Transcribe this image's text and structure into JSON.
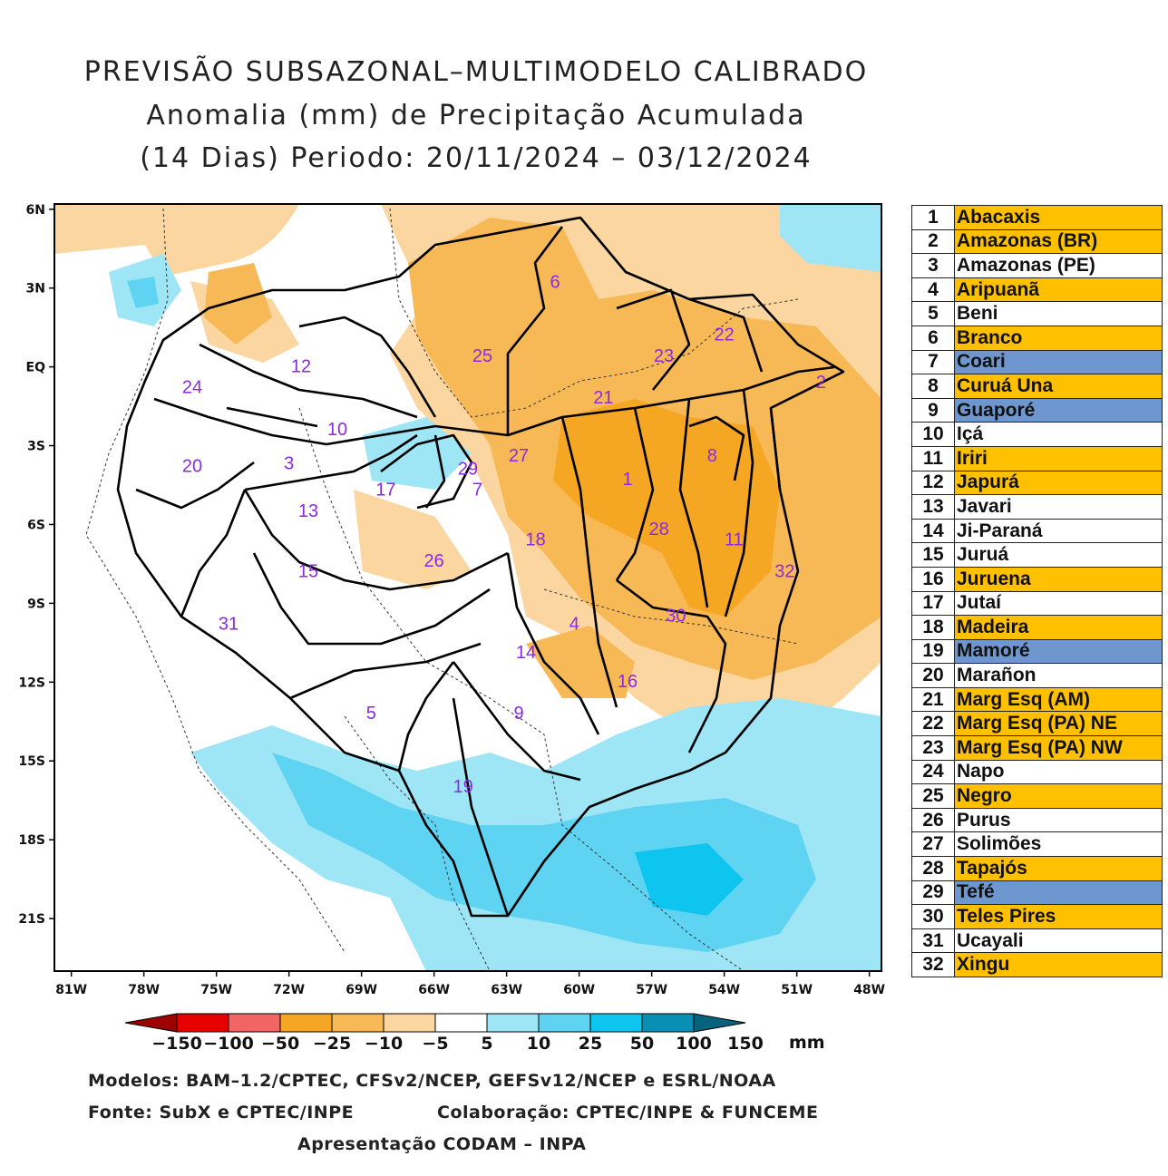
{
  "title": {
    "line1": "PREVISÃO SUBSAZONAL–MULTIMODELO CALIBRADO",
    "line2": "Anomalia (mm) de Precipitação Acumulada",
    "line3": "(14 Dias) Periodo: 20/11/2024 – 03/12/2024"
  },
  "axes": {
    "y_ticks": [
      "6N",
      "3N",
      "EQ",
      "3S",
      "6S",
      "9S",
      "12S",
      "15S",
      "18S",
      "21S"
    ],
    "x_ticks": [
      "81W",
      "78W",
      "75W",
      "72W",
      "69W",
      "66W",
      "63W",
      "60W",
      "57W",
      "54W",
      "51W",
      "48W"
    ]
  },
  "basin_labels": [
    {
      "id": "6",
      "lon": -61.0,
      "lat": 3.0
    },
    {
      "id": "22",
      "lon": -54.0,
      "lat": 1.0
    },
    {
      "id": "25",
      "lon": -64.0,
      "lat": 0.2
    },
    {
      "id": "23",
      "lon": -56.5,
      "lat": 0.2
    },
    {
      "id": "12",
      "lon": -71.5,
      "lat": -0.2
    },
    {
      "id": "2",
      "lon": -50.0,
      "lat": -0.8
    },
    {
      "id": "24",
      "lon": -76.0,
      "lat": -1.0
    },
    {
      "id": "21",
      "lon": -59.0,
      "lat": -1.4
    },
    {
      "id": "10",
      "lon": -70.0,
      "lat": -2.6
    },
    {
      "id": "3",
      "lon": -72.0,
      "lat": -3.9
    },
    {
      "id": "20",
      "lon": -76.0,
      "lat": -4.0
    },
    {
      "id": "27",
      "lon": -62.5,
      "lat": -3.6
    },
    {
      "id": "8",
      "lon": -54.5,
      "lat": -3.6
    },
    {
      "id": "29",
      "lon": -64.6,
      "lat": -4.1
    },
    {
      "id": "1",
      "lon": -58.0,
      "lat": -4.5
    },
    {
      "id": "17",
      "lon": -68.0,
      "lat": -4.9
    },
    {
      "id": "7",
      "lon": -64.2,
      "lat": -4.9
    },
    {
      "id": "13",
      "lon": -71.2,
      "lat": -5.7
    },
    {
      "id": "28",
      "lon": -56.7,
      "lat": -6.4
    },
    {
      "id": "18",
      "lon": -61.8,
      "lat": -6.8
    },
    {
      "id": "11",
      "lon": -53.6,
      "lat": -6.8
    },
    {
      "id": "26",
      "lon": -66.0,
      "lat": -7.6
    },
    {
      "id": "15",
      "lon": -71.2,
      "lat": -8.0
    },
    {
      "id": "32",
      "lon": -51.5,
      "lat": -8.0
    },
    {
      "id": "30",
      "lon": -56.0,
      "lat": -9.7
    },
    {
      "id": "4",
      "lon": -60.2,
      "lat": -10.0
    },
    {
      "id": "31",
      "lon": -74.5,
      "lat": -10.0
    },
    {
      "id": "14",
      "lon": -62.2,
      "lat": -11.1
    },
    {
      "id": "16",
      "lon": -58.0,
      "lat": -12.2
    },
    {
      "id": "5",
      "lon": -68.6,
      "lat": -13.4
    },
    {
      "id": "9",
      "lon": -62.5,
      "lat": -13.4
    },
    {
      "id": "19",
      "lon": -64.8,
      "lat": -16.2
    }
  ],
  "legend": [
    {
      "n": "1",
      "name": "Abacaxis",
      "color": "#ffc000"
    },
    {
      "n": "2",
      "name": "Amazonas (BR)",
      "color": "#ffc000"
    },
    {
      "n": "3",
      "name": "Amazonas (PE)",
      "color": "#ffffff"
    },
    {
      "n": "4",
      "name": "Aripuanã",
      "color": "#ffc000"
    },
    {
      "n": "5",
      "name": "Beni",
      "color": "#ffffff"
    },
    {
      "n": "6",
      "name": "Branco",
      "color": "#ffc000"
    },
    {
      "n": "7",
      "name": "Coari",
      "color": "#6f97cf"
    },
    {
      "n": "8",
      "name": "Curuá Una",
      "color": "#ffc000"
    },
    {
      "n": "9",
      "name": "Guaporé",
      "color": "#6f97cf"
    },
    {
      "n": "10",
      "name": "Içá",
      "color": "#ffffff"
    },
    {
      "n": "11",
      "name": "Iriri",
      "color": "#ffc000"
    },
    {
      "n": "12",
      "name": "Japurá",
      "color": "#ffc000"
    },
    {
      "n": "13",
      "name": "Javari",
      "color": "#ffffff"
    },
    {
      "n": "14",
      "name": "Ji-Paraná",
      "color": "#ffffff"
    },
    {
      "n": "15",
      "name": "Juruá",
      "color": "#ffffff"
    },
    {
      "n": "16",
      "name": "Juruena",
      "color": "#ffc000"
    },
    {
      "n": "17",
      "name": "Jutaí",
      "color": "#ffffff"
    },
    {
      "n": "18",
      "name": "Madeira",
      "color": "#ffc000"
    },
    {
      "n": "19",
      "name": "Mamoré",
      "color": "#6f97cf"
    },
    {
      "n": "20",
      "name": "Marañon",
      "color": "#ffffff"
    },
    {
      "n": "21",
      "name": "Marg Esq (AM)",
      "color": "#ffc000"
    },
    {
      "n": "22",
      "name": "Marg Esq (PA) NE",
      "color": "#ffc000"
    },
    {
      "n": "23",
      "name": "Marg Esq (PA) NW",
      "color": "#ffc000"
    },
    {
      "n": "24",
      "name": "Napo",
      "color": "#ffffff"
    },
    {
      "n": "25",
      "name": "Negro",
      "color": "#ffc000"
    },
    {
      "n": "26",
      "name": "Purus",
      "color": "#ffffff"
    },
    {
      "n": "27",
      "name": "Solimões",
      "color": "#ffffff"
    },
    {
      "n": "28",
      "name": "Tapajós",
      "color": "#ffc000"
    },
    {
      "n": "29",
      "name": "Tefé",
      "color": "#6f97cf"
    },
    {
      "n": "30",
      "name": "Teles Pires",
      "color": "#ffc000"
    },
    {
      "n": "31",
      "name": "Ucayali",
      "color": "#ffffff"
    },
    {
      "n": "32",
      "name": "Xingu",
      "color": "#ffc000"
    }
  ],
  "colorbar": {
    "labels": [
      "-150",
      "-100",
      "-50",
      "-25",
      "-10",
      "-5",
      "5",
      "10",
      "25",
      "50",
      "100",
      "150"
    ],
    "unit": "mm",
    "colors": [
      "#9c0000",
      "#e60000",
      "#f26565",
      "#f5a623",
      "#f7b955",
      "#fbd6a0",
      "#ffffff",
      "#9ee6f5",
      "#5fd3f2",
      "#0ec5ef",
      "#0a8fb4",
      "#07627b"
    ]
  },
  "footer": {
    "models": "Modelos: BAM–1.2/CPTEC, CFSv2/NCEP, GEFSv12/NCEP e ESRL/NOAA",
    "source": "Fonte: SubX e CPTEC/INPE",
    "collab": "Colaboração: CPTEC/INPE & FUNCEME",
    "presentation": "Apresentação CODAM – INPA"
  }
}
